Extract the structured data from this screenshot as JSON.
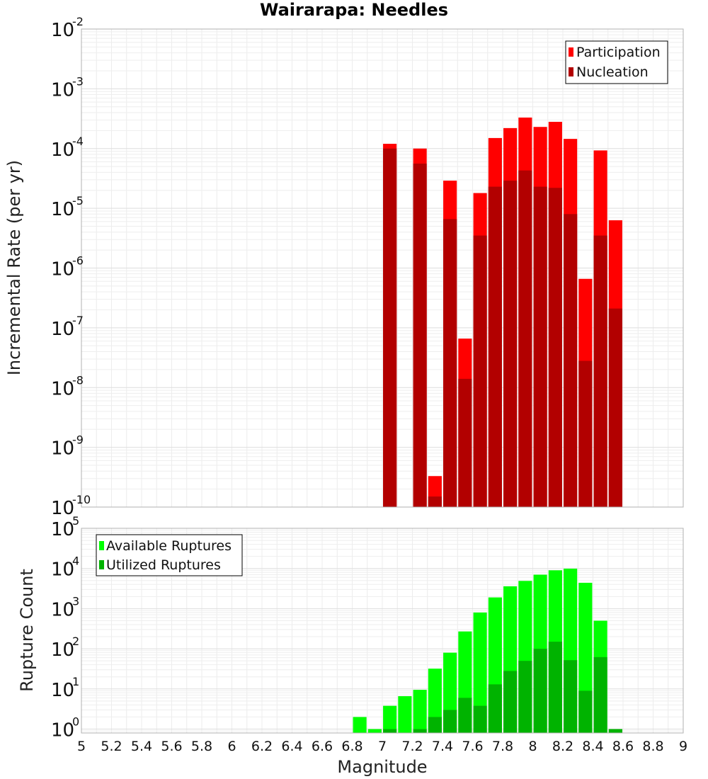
{
  "chart_data": [
    {
      "type": "bar",
      "title": "Wairarapa: Needles",
      "xlabel": "Magnitude",
      "ylabel": "Incremental Rate (per yr)",
      "yscale": "log",
      "xlim": [
        5,
        9
      ],
      "ylim": [
        1e-10,
        0.01
      ],
      "ytick_exponents": [
        -10,
        -9,
        -8,
        -7,
        -6,
        -5,
        -4,
        -3,
        -2
      ],
      "grid": true,
      "legend_position": "top-right",
      "bar_width": 0.09,
      "overlay": true,
      "series": [
        {
          "name": "Participation",
          "color": "#ff0000",
          "points": [
            {
              "x": 7.05,
              "y": 0.00012
            },
            {
              "x": 7.25,
              "y": 0.0001
            },
            {
              "x": 7.35,
              "y": 3.3e-10
            },
            {
              "x": 7.45,
              "y": 2.9e-05
            },
            {
              "x": 7.55,
              "y": 6.6e-08
            },
            {
              "x": 7.65,
              "y": 1.8e-05
            },
            {
              "x": 7.75,
              "y": 0.00015
            },
            {
              "x": 7.85,
              "y": 0.00022
            },
            {
              "x": 7.95,
              "y": 0.00033
            },
            {
              "x": 8.05,
              "y": 0.00023
            },
            {
              "x": 8.15,
              "y": 0.00028
            },
            {
              "x": 8.25,
              "y": 0.000145
            },
            {
              "x": 8.35,
              "y": 6.6e-07
            },
            {
              "x": 8.45,
              "y": 9.3e-05
            },
            {
              "x": 8.55,
              "y": 6.3e-06
            }
          ]
        },
        {
          "name": "Nucleation",
          "color": "#b20000",
          "points": [
            {
              "x": 7.05,
              "y": 0.0001
            },
            {
              "x": 7.25,
              "y": 5.6e-05
            },
            {
              "x": 7.35,
              "y": 1.5e-10
            },
            {
              "x": 7.45,
              "y": 6.6e-06
            },
            {
              "x": 7.55,
              "y": 1.4e-08
            },
            {
              "x": 7.65,
              "y": 3.5e-06
            },
            {
              "x": 7.75,
              "y": 2.3e-05
            },
            {
              "x": 7.85,
              "y": 2.9e-05
            },
            {
              "x": 7.95,
              "y": 4.3e-05
            },
            {
              "x": 8.05,
              "y": 2.3e-05
            },
            {
              "x": 8.15,
              "y": 2.2e-05
            },
            {
              "x": 8.25,
              "y": 8e-06
            },
            {
              "x": 8.35,
              "y": 2.8e-08
            },
            {
              "x": 8.45,
              "y": 3.5e-06
            },
            {
              "x": 8.55,
              "y": 2.1e-07
            }
          ]
        }
      ]
    },
    {
      "type": "bar",
      "xlabel": "Magnitude",
      "ylabel": "Rupture Count",
      "yscale": "log",
      "xlim": [
        5,
        9
      ],
      "ylim": [
        0.8,
        100000
      ],
      "ytick_exponents": [
        0,
        1,
        2,
        3,
        4,
        5
      ],
      "xticks": [
        "5",
        "5.2",
        "5.4",
        "5.6",
        "5.8",
        "6",
        "6.2",
        "6.4",
        "6.6",
        "6.8",
        "7",
        "7.2",
        "7.4",
        "7.6",
        "7.8",
        "8",
        "8.2",
        "8.4",
        "8.6",
        "8.8",
        "9"
      ],
      "grid": true,
      "legend_position": "top-left",
      "bar_width": 0.09,
      "overlay": true,
      "series": [
        {
          "name": "Available Ruptures",
          "color": "#00ff00",
          "points": [
            {
              "x": 6.85,
              "y": 2
            },
            {
              "x": 6.95,
              "y": 1
            },
            {
              "x": 7.05,
              "y": 3.8
            },
            {
              "x": 7.15,
              "y": 6.6
            },
            {
              "x": 7.25,
              "y": 9.5
            },
            {
              "x": 7.35,
              "y": 32
            },
            {
              "x": 7.45,
              "y": 80
            },
            {
              "x": 7.55,
              "y": 270
            },
            {
              "x": 7.65,
              "y": 800
            },
            {
              "x": 7.75,
              "y": 1900
            },
            {
              "x": 7.85,
              "y": 3600
            },
            {
              "x": 7.95,
              "y": 4900
            },
            {
              "x": 8.05,
              "y": 7000
            },
            {
              "x": 8.15,
              "y": 9000
            },
            {
              "x": 8.25,
              "y": 9900
            },
            {
              "x": 8.35,
              "y": 4400
            },
            {
              "x": 8.45,
              "y": 500
            },
            {
              "x": 8.55,
              "y": 1
            }
          ]
        },
        {
          "name": "Utilized Ruptures",
          "color": "#00b300",
          "points": [
            {
              "x": 7.05,
              "y": 1
            },
            {
              "x": 7.25,
              "y": 1
            },
            {
              "x": 7.35,
              "y": 2
            },
            {
              "x": 7.45,
              "y": 3
            },
            {
              "x": 7.55,
              "y": 6
            },
            {
              "x": 7.65,
              "y": 3.8
            },
            {
              "x": 7.75,
              "y": 13
            },
            {
              "x": 7.85,
              "y": 28
            },
            {
              "x": 7.95,
              "y": 50
            },
            {
              "x": 8.05,
              "y": 100
            },
            {
              "x": 8.15,
              "y": 150
            },
            {
              "x": 8.25,
              "y": 52
            },
            {
              "x": 8.35,
              "y": 9
            },
            {
              "x": 8.45,
              "y": 62
            },
            {
              "x": 8.55,
              "y": 1
            }
          ]
        }
      ]
    }
  ]
}
